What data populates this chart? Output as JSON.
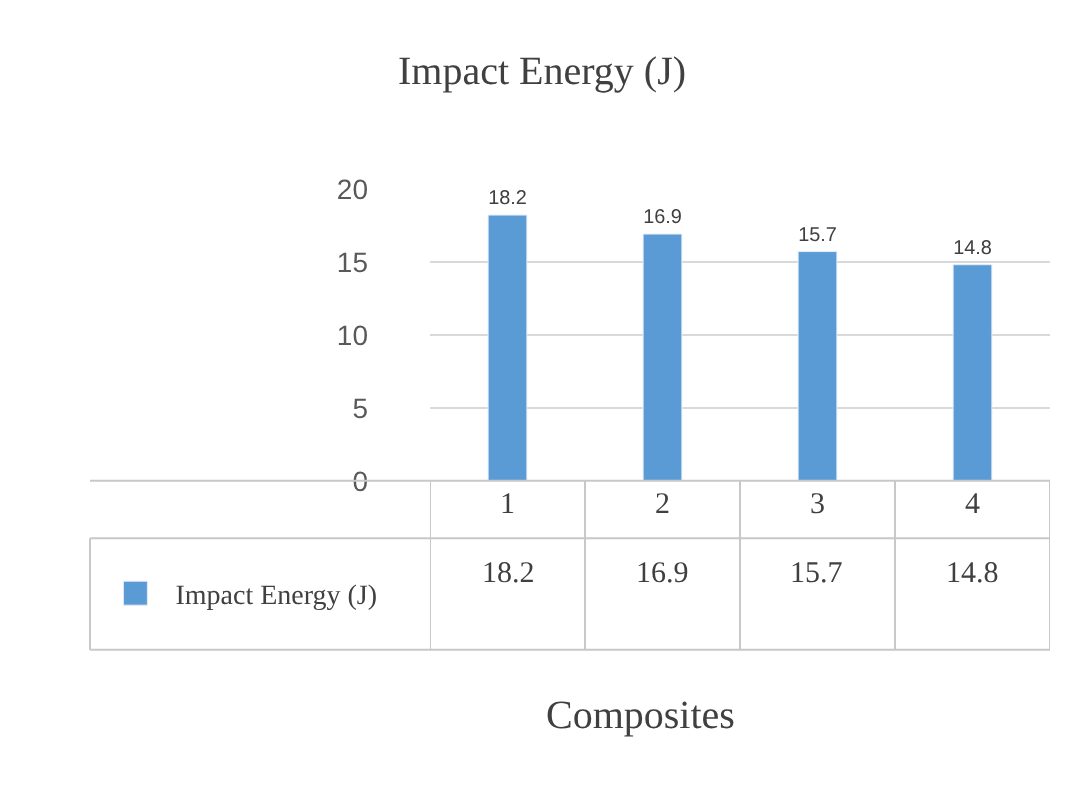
{
  "chart_data": {
    "type": "bar",
    "title": "Impact Energy (J)",
    "xlabel": "Composites",
    "categories": [
      "1",
      "2",
      "3",
      "4"
    ],
    "series": [
      {
        "name": "Impact Energy (J)",
        "color": "#5b9bd5",
        "values": [
          18.2,
          16.9,
          15.7,
          14.8
        ],
        "value_labels": [
          "18.2",
          "16.9",
          "15.7",
          "14.8"
        ]
      }
    ],
    "ylim": [
      0,
      20
    ],
    "yticks": [
      0,
      5,
      10,
      15,
      20
    ],
    "grid": "y",
    "legend": "bottom left",
    "annotations": [
      "18.2",
      "16.9",
      "15.7",
      "14.8"
    ]
  }
}
